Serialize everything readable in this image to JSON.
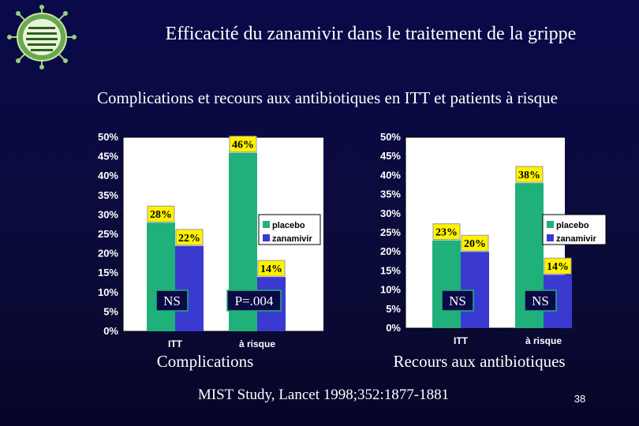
{
  "slide": {
    "title": "Efficacité du zanamivir dans le traitement de la grippe",
    "subtitle": "Complications et recours aux antibiotiques en ITT et patients à risque",
    "footer": "MIST Study, Lancet 1998;352:1877-1881",
    "page_number": "38"
  },
  "colors": {
    "background": "#0a0a46",
    "placebo": "#20b07a",
    "zanamivir": "#3a3ad0",
    "label_box": "#fff200"
  },
  "chart_data": [
    {
      "type": "bar",
      "caption": "Complications",
      "categories": [
        "ITT",
        "à risque"
      ],
      "series": [
        {
          "name": "placebo",
          "values": [
            28,
            46
          ]
        },
        {
          "name": "zanamivir",
          "values": [
            22,
            14
          ]
        }
      ],
      "data_labels": [
        [
          "28%",
          "22%"
        ],
        [
          "46%",
          "14%"
        ]
      ],
      "significance": [
        "NS",
        "P=.004"
      ],
      "y_ticks": [
        "0%",
        "5%",
        "10%",
        "15%",
        "20%",
        "25%",
        "30%",
        "35%",
        "40%",
        "45%",
        "50%"
      ],
      "ylim": [
        0,
        50
      ],
      "legend": [
        "placebo",
        "zanamivir"
      ]
    },
    {
      "type": "bar",
      "caption": "Recours aux antibiotiques",
      "categories": [
        "ITT",
        "à risque"
      ],
      "series": [
        {
          "name": "placebo",
          "values": [
            23,
            38
          ]
        },
        {
          "name": "zanamivir",
          "values": [
            20,
            14
          ]
        }
      ],
      "data_labels": [
        [
          "23%",
          "20%"
        ],
        [
          "38%",
          "14%"
        ]
      ],
      "significance": [
        "NS",
        "NS"
      ],
      "y_ticks": [
        "0%",
        "5%",
        "10%",
        "15%",
        "20%",
        "25%",
        "30%",
        "35%",
        "40%",
        "45%",
        "50%"
      ],
      "ylim": [
        0,
        50
      ],
      "legend": [
        "placebo",
        "zanamivir"
      ]
    }
  ]
}
